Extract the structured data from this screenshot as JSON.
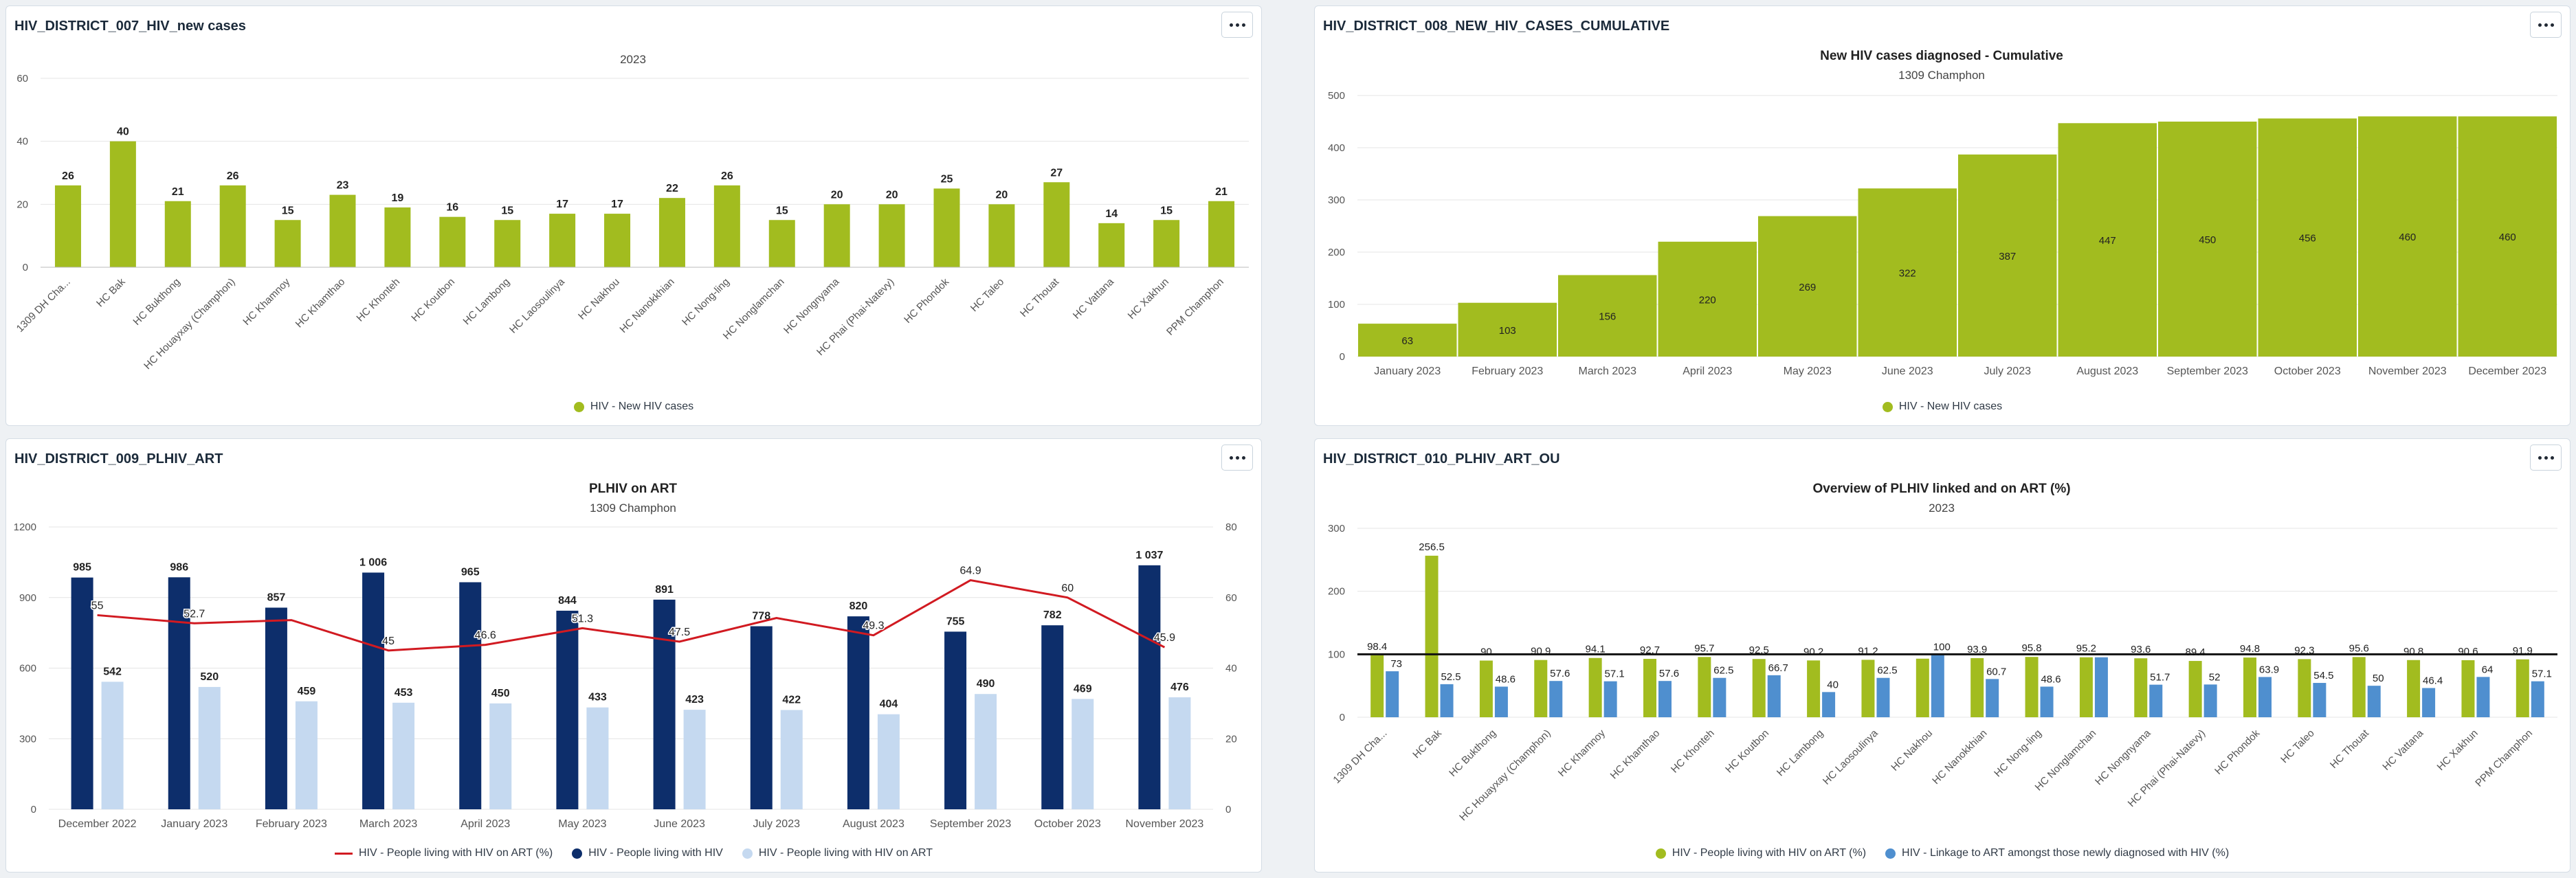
{
  "colors": {
    "green": "#a2bc1f",
    "navy": "#0d2e6b",
    "light_blue": "#c5d9f0",
    "mid_blue": "#4f8fcf",
    "red": "#d11a21",
    "axis_text": "#555555",
    "grid": "#e4e4e4"
  },
  "cards": [
    {
      "title": "HIV_DISTRICT_007_HIV_new cases",
      "menu_icon": "more-horizontal-icon"
    },
    {
      "title": "HIV_DISTRICT_008_NEW_HIV_CASES_CUMULATIVE",
      "menu_icon": "more-horizontal-icon"
    },
    {
      "title": "HIV_DISTRICT_009_PLHIV_ART",
      "menu_icon": "more-horizontal-icon"
    },
    {
      "title": "HIV_DISTRICT_010_PLHIV_ART_OU",
      "menu_icon": "more-horizontal-icon"
    }
  ],
  "chart_data": [
    {
      "type": "bar",
      "title": "",
      "subtitle": "2023",
      "categories": [
        "1309 DH Cha...",
        "HC Bak",
        "HC Bukthong",
        "HC Houayxay (Champhon)",
        "HC Khamnoy",
        "HC Khamthao",
        "HC Khonteh",
        "HC Koutbon",
        "HC Lambong",
        "HC Laosoulinya",
        "HC Nakhou",
        "HC Nanokkhian",
        "HC Nong-ling",
        "HC Nonglamchan",
        "HC Nongnyama",
        "HC Phai (Phai-Natevy)",
        "HC Phondok",
        "HC Taleo",
        "HC Thouat",
        "HC Vattana",
        "HC Xakhun",
        "PPM Champhon"
      ],
      "series": [
        {
          "name": "HIV - New HIV cases",
          "values": [
            26,
            40,
            21,
            26,
            15,
            23,
            19,
            16,
            15,
            17,
            17,
            22,
            26,
            15,
            20,
            20,
            25,
            20,
            27,
            14,
            15,
            21
          ]
        }
      ],
      "ylim": [
        0,
        60
      ],
      "yticks": [
        0,
        20,
        40,
        60
      ],
      "grid": true,
      "legend_position": "bottom"
    },
    {
      "type": "bar",
      "title": "New HIV cases diagnosed - Cumulative",
      "subtitle": "1309 Champhon",
      "categories": [
        "January 2023",
        "February 2023",
        "March 2023",
        "April 2023",
        "May 2023",
        "June 2023",
        "July 2023",
        "August 2023",
        "September 2023",
        "October 2023",
        "November 2023",
        "December 2023"
      ],
      "series": [
        {
          "name": "HIV - New HIV cases",
          "values": [
            63,
            103,
            156,
            220,
            269,
            322,
            387,
            447,
            450,
            456,
            460,
            460
          ]
        }
      ],
      "ylim": [
        0,
        500
      ],
      "yticks": [
        0,
        100,
        200,
        300,
        400,
        500
      ],
      "grid": true,
      "legend_position": "bottom"
    },
    {
      "type": "bar",
      "title": "PLHIV on ART",
      "subtitle": "1309 Champhon",
      "categories": [
        "December 2022",
        "January 2023",
        "February 2023",
        "March 2023",
        "April 2023",
        "May 2023",
        "June 2023",
        "July 2023",
        "August 2023",
        "September 2023",
        "October 2023",
        "November 2023"
      ],
      "series": [
        {
          "name": "HIV - People living with HIV",
          "kind": "bar",
          "axis": "left",
          "values": [
            985,
            986,
            857,
            1006,
            965,
            844,
            891,
            778,
            820,
            755,
            782,
            1037
          ],
          "labels": [
            "985",
            "986",
            "857",
            "1 006",
            "965",
            "844",
            "891",
            "778",
            "820",
            "755",
            "782",
            "1 037"
          ]
        },
        {
          "name": "HIV - People living with HIV on ART",
          "kind": "bar",
          "axis": "left",
          "values": [
            542,
            520,
            459,
            453,
            450,
            433,
            423,
            422,
            404,
            490,
            469,
            476
          ],
          "labels": [
            "542",
            "520",
            "459",
            "453",
            "450",
            "433",
            "423",
            "422",
            "404",
            "490",
            "469",
            "476"
          ]
        },
        {
          "name": "HIV - People living with HIV on ART (%)",
          "kind": "line",
          "axis": "right",
          "values": [
            55,
            52.7,
            53.6,
            45,
            46.6,
            51.3,
            47.5,
            54.2,
            49.3,
            64.9,
            60,
            45.9
          ],
          "labels": [
            "55",
            "52.7",
            "",
            "45",
            "46.6",
            "51.3",
            "47.5",
            "",
            "49.3",
            "64.9",
            "60",
            "45.9"
          ]
        }
      ],
      "ylim": [
        0,
        1200
      ],
      "yticks": [
        0,
        300,
        600,
        900,
        1200
      ],
      "y2lim": [
        0,
        80
      ],
      "y2ticks": [
        0,
        20,
        40,
        60,
        80
      ],
      "grid": true,
      "legend_position": "bottom",
      "legend_order": [
        "HIV - People living with HIV on ART (%)",
        "HIV - People living with HIV",
        "HIV - People living with HIV on ART"
      ]
    },
    {
      "type": "bar",
      "title": "Overview of PLHIV linked and on ART (%)",
      "subtitle": "2023",
      "categories": [
        "1309 DH Cha...",
        "HC Bak",
        "HC Bukthong",
        "HC Houayxay (Champhon)",
        "HC Khamnoy",
        "HC Khamthao",
        "HC Khonteh",
        "HC Koutbon",
        "HC Lambong",
        "HC Laosoulinya",
        "HC Nakhou",
        "HC Nanokkhian",
        "HC Nong-ling",
        "HC Nonglamchan",
        "HC Nongnyama",
        "HC Phai (Phai-Natevy)",
        "HC Phondok",
        "HC Taleo",
        "HC Thouat",
        "HC Vattana",
        "HC Xakhun",
        "PPM Champhon"
      ],
      "series": [
        {
          "name": "HIV - People living with HIV on ART (%)",
          "values": [
            98.4,
            256.5,
            90,
            90.9,
            94.1,
            92.7,
            95.7,
            92.5,
            90.2,
            91.2,
            93,
            93.9,
            95.8,
            95.2,
            93.6,
            89.4,
            94.8,
            92.3,
            95.6,
            90.8,
            90.6,
            91.9
          ],
          "labels": [
            "98.4",
            "256.5",
            "90",
            "90.9",
            "94.1",
            "92.7",
            "95.7",
            "92.5",
            "90.2",
            "91.2",
            "",
            "93.9",
            "95.8",
            "95.2",
            "93.6",
            "89.4",
            "94.8",
            "92.3",
            "95.6",
            "90.8",
            "90.6",
            "91.9"
          ]
        },
        {
          "name": "HIV - Linkage to ART amongst those newly diagnosed with HIV (%)",
          "values": [
            73,
            52.5,
            48.6,
            57.6,
            57.1,
            57.6,
            62.5,
            66.7,
            40,
            62.5,
            100,
            60.7,
            48.6,
            95.2,
            51.7,
            52,
            63.9,
            54.5,
            50,
            46.4,
            64,
            57.1
          ],
          "labels": [
            "73",
            "52.5",
            "48.6",
            "57.6",
            "57.1",
            "57.6",
            "62.5",
            "66.7",
            "40",
            "62.5",
            "100",
            "60.7",
            "48.6",
            "",
            "51.7",
            "52",
            "63.9",
            "54.5",
            "50",
            "46.4",
            "64",
            "57.1"
          ]
        }
      ],
      "target_line": 100,
      "ylim": [
        0,
        300
      ],
      "yticks": [
        0,
        100,
        200,
        300
      ],
      "grid": true,
      "legend_position": "bottom"
    }
  ]
}
